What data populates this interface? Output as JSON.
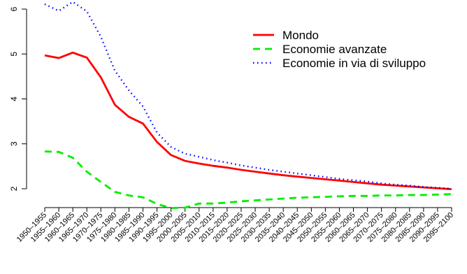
{
  "chart_data": {
    "type": "line",
    "categories": [
      "1950–1955",
      "1955–1960",
      "1960–1965",
      "1965–1970",
      "1970–1975",
      "1975–1980",
      "1980–1985",
      "1985–1990",
      "1990–1995",
      "1995–2000",
      "2000–2005",
      "2005–2010",
      "2010–2015",
      "2015–2020",
      "2020–2025",
      "2025–2030",
      "2030–2035",
      "2035–2040",
      "2040–2045",
      "2045–2050",
      "2050–2055",
      "2055–2060",
      "2060–2065",
      "2065–2070",
      "2070–2075",
      "2075–2080",
      "2080–2085",
      "2085–2090",
      "2090–2095",
      "2095–2100"
    ],
    "yticks": [
      "2",
      "3",
      "4",
      "5",
      "6"
    ],
    "ylim": [
      1.8,
      6.1
    ],
    "series": [
      {
        "name": "Mondo",
        "color": "#ff0000",
        "dash": "solid",
        "values": [
          4.97,
          4.91,
          5.03,
          4.92,
          4.48,
          3.87,
          3.6,
          3.45,
          3.04,
          2.75,
          2.62,
          2.56,
          2.51,
          2.47,
          2.42,
          2.38,
          2.34,
          2.3,
          2.27,
          2.24,
          2.21,
          2.18,
          2.15,
          2.12,
          2.09,
          2.07,
          2.05,
          2.03,
          2.01,
          1.99
        ]
      },
      {
        "name": "Economie avanzate",
        "color": "#00ee00",
        "dash": "dashed",
        "values": [
          2.83,
          2.82,
          2.69,
          2.38,
          2.15,
          1.93,
          1.85,
          1.81,
          1.66,
          1.57,
          1.58,
          1.67,
          1.67,
          1.69,
          1.72,
          1.74,
          1.76,
          1.78,
          1.8,
          1.81,
          1.82,
          1.83,
          1.84,
          1.84,
          1.85,
          1.85,
          1.86,
          1.86,
          1.87,
          1.88
        ]
      },
      {
        "name": "Economie in via di sviluppo",
        "color": "#0000ff",
        "dash": "dotted",
        "values": [
          6.11,
          5.96,
          6.16,
          5.95,
          5.38,
          4.63,
          4.19,
          3.83,
          3.25,
          2.93,
          2.78,
          2.71,
          2.64,
          2.58,
          2.52,
          2.47,
          2.42,
          2.38,
          2.34,
          2.3,
          2.26,
          2.22,
          2.19,
          2.16,
          2.12,
          2.09,
          2.07,
          2.04,
          2.02,
          2.0
        ]
      }
    ],
    "legend_position": "top-right",
    "grid": false
  }
}
